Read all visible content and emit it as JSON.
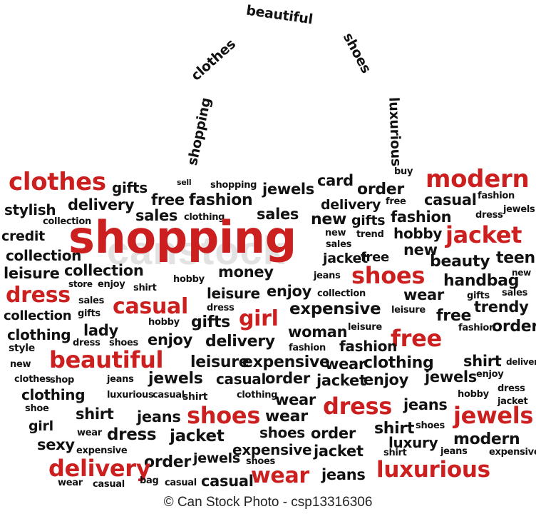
{
  "colors": {
    "black": "#111111",
    "red": "#cc1f1f",
    "background": "#ffffff",
    "watermark": "#bebebe"
  },
  "watermark": "canstock",
  "credit": "© Can Stock Photo - csp13316306",
  "handle_words": [
    "shopping",
    "clothes",
    "beautiful",
    "shoes",
    "luxurious"
  ],
  "bag_words": [
    "clothes",
    "gifts",
    "sell",
    "shopping",
    "card",
    "buy",
    "modern",
    "stylish",
    "delivery",
    "free",
    "fashion",
    "jewels",
    "order",
    "delivery",
    "free",
    "casual",
    "fashion",
    "jewels",
    "collection",
    "sales",
    "clothing",
    "sales",
    "new",
    "gifts",
    "fashion",
    "dress",
    "credit",
    "shopping",
    "new",
    "trend",
    "hobby",
    "jacket",
    "collection",
    "sales",
    "new",
    "jacket",
    "free",
    "beauty",
    "teen",
    "leisure",
    "collection",
    "money",
    "jeans",
    "shoes",
    "handbag",
    "new",
    "store",
    "enjoy",
    "hobby",
    "shirt",
    "leisure",
    "enjoy",
    "collection",
    "wear",
    "gifts",
    "sales",
    "dress",
    "sales",
    "casual",
    "dress",
    "expensive",
    "trendy",
    "collection",
    "gifts",
    "girl",
    "leisure",
    "free",
    "clothing",
    "hobby",
    "gifts",
    "fashion",
    "order",
    "lady",
    "woman",
    "leisure",
    "enjoy",
    "free",
    "style",
    "fashion",
    "fashion",
    "delivery",
    "dress",
    "shoes",
    "beautiful",
    "leisure",
    "expensive",
    "wear",
    "clothing",
    "shirt",
    "delivery",
    "new",
    "clothes",
    "shop",
    "jeans",
    "jewels",
    "casual",
    "order",
    "jacket",
    "enjoy",
    "jewels",
    "enjoy",
    "clothing",
    "luxurious",
    "casual",
    "shirt",
    "clothing",
    "wear",
    "dress",
    "jeans",
    "hobby",
    "dress",
    "jacket",
    "shoe",
    "shirt",
    "jeans",
    "shoes",
    "wear",
    "jewels",
    "girl",
    "wear",
    "shirt",
    "shoes",
    "dress",
    "jacket",
    "shoes",
    "order",
    "luxury",
    "modern",
    "sexy",
    "expensive",
    "expensive",
    "shoes",
    "jacket",
    "order",
    "jewels",
    "shirt",
    "jeans",
    "expensive",
    "delivery",
    "wear",
    "casual",
    "bag",
    "casual",
    "casual",
    "wear",
    "jeans",
    "luxurious"
  ]
}
